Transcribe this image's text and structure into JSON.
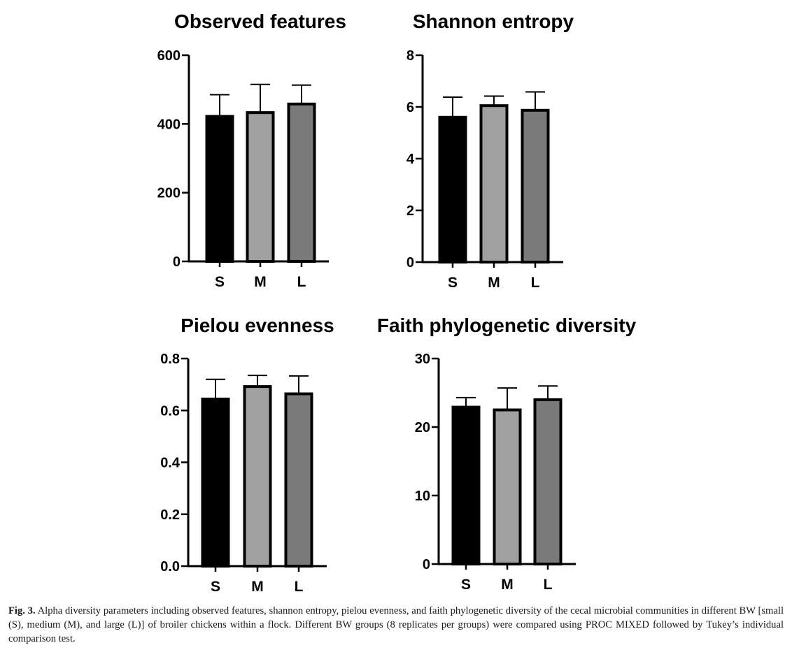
{
  "chart_data": [
    {
      "type": "bar",
      "title": "Observed features",
      "categories": [
        "S",
        "M",
        "L"
      ],
      "values": [
        422,
        433,
        458
      ],
      "errors": [
        63,
        82,
        55
      ],
      "ylim": [
        0,
        600
      ],
      "yticks": [
        "0",
        "200",
        "400",
        "600"
      ],
      "ytick_values": [
        0,
        200,
        400,
        600
      ],
      "xlabel": "",
      "ylabel": "",
      "grid": false
    },
    {
      "type": "bar",
      "title": "Shannon entropy",
      "categories": [
        "S",
        "M",
        "L"
      ],
      "values": [
        5.6,
        6.05,
        5.87
      ],
      "errors": [
        0.78,
        0.37,
        0.71
      ],
      "ylim": [
        0,
        8
      ],
      "yticks": [
        "0",
        "2",
        "4",
        "6",
        "8"
      ],
      "ytick_values": [
        0,
        2,
        4,
        6,
        8
      ],
      "xlabel": "",
      "ylabel": "",
      "grid": false
    },
    {
      "type": "bar",
      "title": "Pielou evenness",
      "categories": [
        "S",
        "M",
        "L"
      ],
      "values": [
        0.644,
        0.692,
        0.664
      ],
      "errors": [
        0.076,
        0.043,
        0.069
      ],
      "ylim": [
        0,
        0.8
      ],
      "yticks": [
        "0.0",
        "0.2",
        "0.4",
        "0.6",
        "0.8"
      ],
      "ytick_values": [
        0,
        0.2,
        0.4,
        0.6,
        0.8
      ],
      "xlabel": "",
      "ylabel": "",
      "grid": false
    },
    {
      "type": "bar",
      "title": "Faith phylogenetic diversity",
      "categories": [
        "S",
        "M",
        "L"
      ],
      "values": [
        22.9,
        22.5,
        24.0
      ],
      "errors": [
        1.4,
        3.2,
        2.0
      ],
      "ylim": [
        0,
        30
      ],
      "yticks": [
        "0",
        "10",
        "20",
        "30"
      ],
      "ytick_values": [
        0,
        10,
        20,
        30
      ],
      "xlabel": "",
      "ylabel": "",
      "grid": false
    }
  ],
  "bar_colors": [
    "#000000",
    "#a0a0a0",
    "#7a7a7a"
  ],
  "caption": {
    "label": "Fig. 3.",
    "text": "Alpha diversity parameters including observed features, shannon entropy, pielou evenness, and faith phylogenetic diversity of the cecal microbial communities in different BW [small (S), medium (M), and large (L)] of broiler chickens within a flock. Different BW groups (8 replicates per groups) were compared using PROC MIXED followed by Tukey’s individual comparison test."
  }
}
